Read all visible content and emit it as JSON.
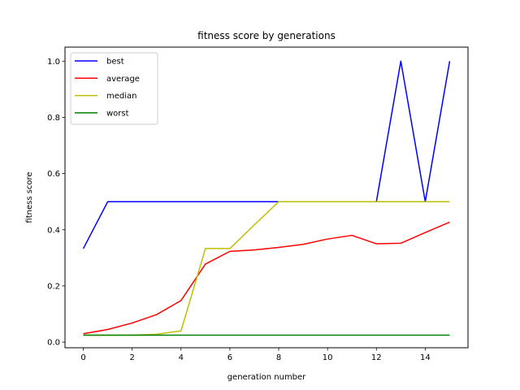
{
  "chart_data": {
    "type": "line",
    "title": "fitness score by generations",
    "xlabel": "generation number",
    "ylabel": "fitness score",
    "xlim": [
      -0.75,
      15.75
    ],
    "ylim": [
      -0.02,
      1.05
    ],
    "xticks": [
      0,
      2,
      4,
      6,
      8,
      10,
      12,
      14
    ],
    "yticks": [
      0.0,
      0.2,
      0.4,
      0.6,
      0.8,
      1.0
    ],
    "xtick_labels": [
      "0",
      "2",
      "4",
      "6",
      "8",
      "10",
      "12",
      "14"
    ],
    "ytick_labels": [
      "0.0",
      "0.2",
      "0.4",
      "0.6",
      "0.8",
      "1.0"
    ],
    "grid": false,
    "legend_position": "top-left",
    "x": [
      0,
      1,
      2,
      3,
      4,
      5,
      6,
      7,
      8,
      9,
      10,
      11,
      12,
      13,
      14,
      15
    ],
    "series": [
      {
        "name": "best",
        "color": "#0000ff",
        "values": [
          0.333,
          0.5,
          0.5,
          0.5,
          0.5,
          0.5,
          0.5,
          0.5,
          0.5,
          0.5,
          0.5,
          0.5,
          0.5,
          1.0,
          0.5,
          1.0
        ]
      },
      {
        "name": "average",
        "color": "#ff0000",
        "values": [
          0.03,
          0.045,
          0.068,
          0.098,
          0.148,
          0.278,
          0.323,
          0.328,
          0.337,
          0.348,
          0.367,
          0.38,
          0.35,
          0.352,
          0.39,
          0.427
        ]
      },
      {
        "name": "median",
        "color": "#bfbf00",
        "values": [
          0.025,
          0.025,
          0.025,
          0.028,
          0.04,
          0.333,
          0.333,
          0.417,
          0.5,
          0.5,
          0.5,
          0.5,
          0.5,
          0.5,
          0.5,
          0.5
        ]
      },
      {
        "name": "worst",
        "color": "#008000",
        "values": [
          0.025,
          0.025,
          0.025,
          0.025,
          0.025,
          0.025,
          0.025,
          0.025,
          0.025,
          0.025,
          0.025,
          0.025,
          0.025,
          0.025,
          0.025,
          0.025
        ]
      }
    ]
  }
}
